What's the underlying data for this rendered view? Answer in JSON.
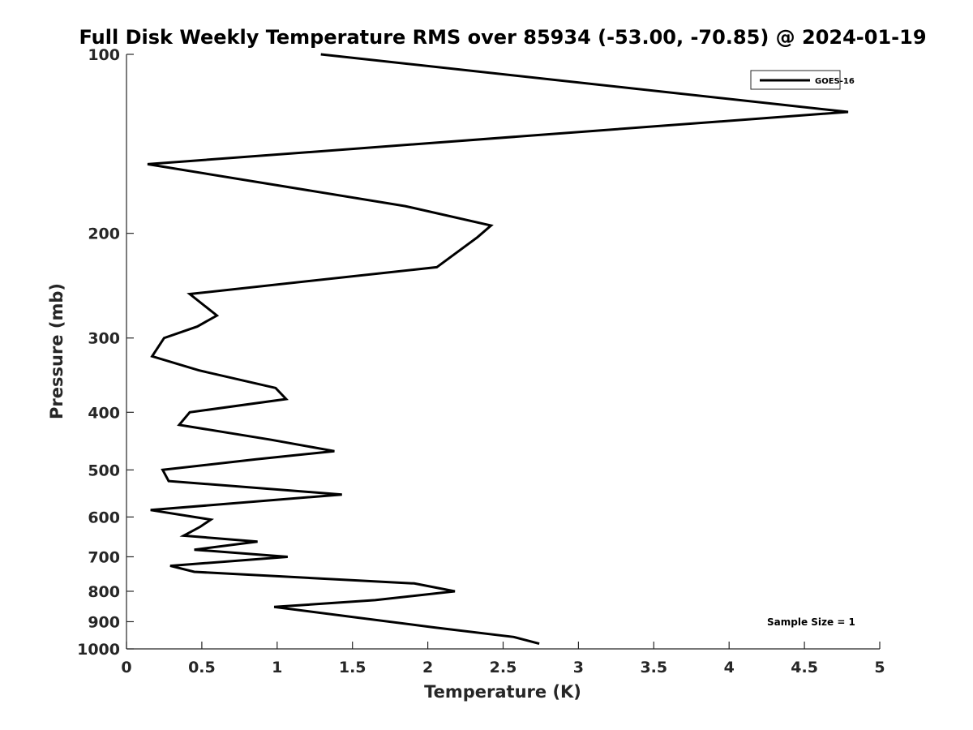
{
  "chart_data": {
    "type": "line",
    "title": "Full Disk Weekly Temperature RMS over 85934 (-53.00, -70.85) @ 2024-01-19",
    "xlabel": "Temperature (K)",
    "ylabel": "Pressure (mb)",
    "xlim": [
      0,
      5
    ],
    "ylim": [
      100,
      1000
    ],
    "y_scale": "log",
    "y_reversed": true,
    "xticks": [
      "0",
      "0.5",
      "1",
      "1.5",
      "2",
      "2.5",
      "3",
      "3.5",
      "4",
      "4.5",
      "5"
    ],
    "yticks": [
      "100",
      "200",
      "300",
      "400",
      "500",
      "600",
      "700",
      "800",
      "900",
      "1000"
    ],
    "legend": {
      "placement": "top-right"
    },
    "annotation": "Sample Size = 1",
    "series": [
      {
        "name": "GOES-16",
        "color": "#000000",
        "x": [
          1.29,
          4.79,
          0.14,
          1.85,
          2.42,
          2.33,
          2.06,
          0.42,
          0.6,
          0.47,
          0.25,
          0.17,
          0.48,
          0.99,
          1.06,
          0.42,
          0.35,
          0.96,
          1.38,
          0.86,
          0.24,
          0.28,
          1.43,
          0.16,
          0.56,
          0.49,
          0.38,
          0.87,
          0.45,
          1.07,
          0.29,
          0.45,
          1.91,
          2.18,
          1.65,
          0.98,
          2.04,
          2.57,
          2.74
        ],
        "y": [
          100,
          125,
          153,
          180,
          194,
          203,
          228,
          253,
          275,
          287,
          300,
          322,
          340,
          364,
          380,
          400,
          420,
          445,
          465,
          480,
          500,
          522,
          550,
          584,
          606,
          623,
          645,
          660,
          681,
          700,
          725,
          742,
          776,
          800,
          828,
          850,
          920,
          955,
          980
        ]
      }
    ]
  }
}
